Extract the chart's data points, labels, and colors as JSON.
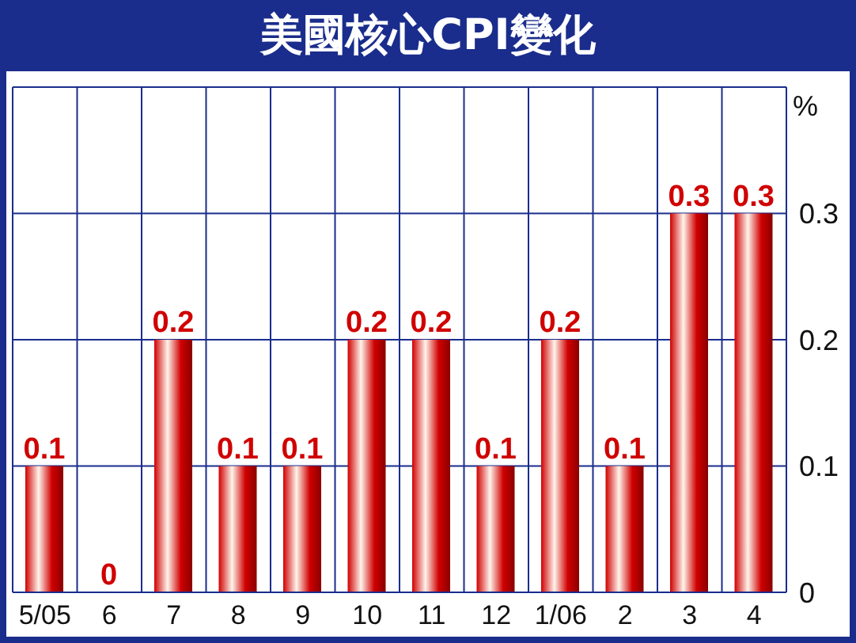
{
  "chart_data": {
    "type": "bar",
    "title": "美國核心CPI變化",
    "ylabel": "%",
    "categories": [
      "5/05",
      "6",
      "7",
      "8",
      "9",
      "10",
      "11",
      "12",
      "1/06",
      "2",
      "3",
      "4"
    ],
    "values": [
      0.1,
      0,
      0.2,
      0.1,
      0.1,
      0.2,
      0.2,
      0.1,
      0.2,
      0.1,
      0.3,
      0.3
    ],
    "color": "#d00000",
    "ylim": [
      0,
      0.4
    ],
    "yticks": [
      0,
      0.1,
      0.2,
      0.3
    ],
    "grid": true,
    "data_labels": true
  }
}
